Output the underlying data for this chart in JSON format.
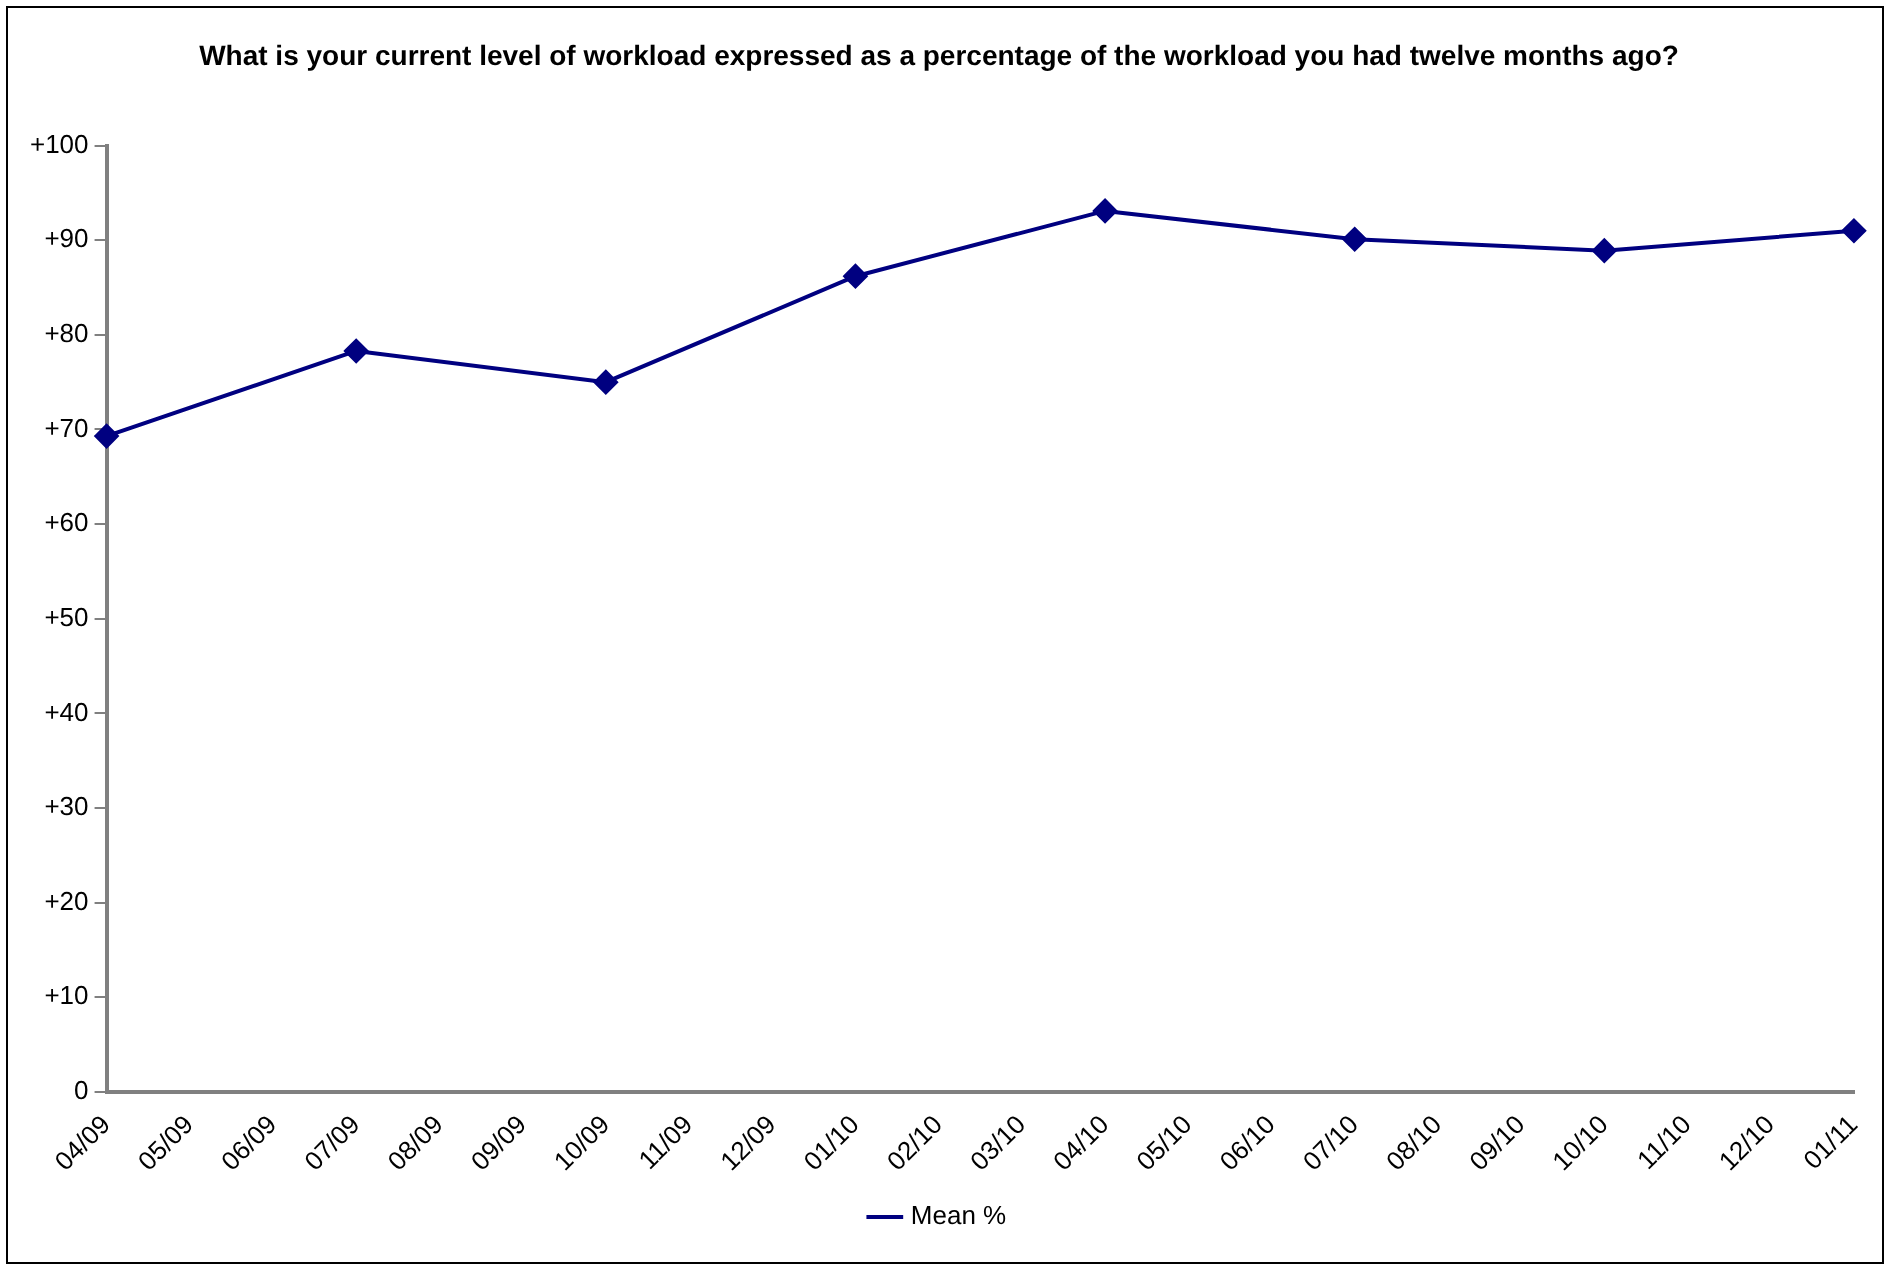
{
  "chart_data": {
    "type": "line",
    "title": "What is your current level of workload expressed as a percentage of the workload you had twelve months ago?",
    "categories": [
      "04/09",
      "05/09",
      "06/09",
      "07/09",
      "08/09",
      "09/09",
      "10/09",
      "11/09",
      "12/09",
      "01/10",
      "02/10",
      "03/10",
      "04/10",
      "05/10",
      "06/10",
      "07/10",
      "08/10",
      "09/10",
      "10/10",
      "11/10",
      "12/10",
      "01/11"
    ],
    "series": [
      {
        "name": "Mean %",
        "color": "#000080",
        "values": [
          69.3,
          null,
          null,
          78.3,
          null,
          null,
          75,
          null,
          null,
          86.2,
          null,
          null,
          93.1,
          null,
          null,
          90.1,
          null,
          null,
          88.9,
          null,
          null,
          91
        ]
      }
    ],
    "ylim": [
      0,
      100
    ],
    "yticks": [
      0,
      {
        "value": 10,
        "label": "+10"
      },
      {
        "value": 20,
        "label": "+20"
      },
      {
        "value": 30,
        "label": "+30"
      },
      {
        "value": 40,
        "label": "+40"
      },
      {
        "value": 50,
        "label": "+50"
      },
      {
        "value": 60,
        "label": "+60"
      },
      {
        "value": 70,
        "label": "+70"
      },
      {
        "value": 80,
        "label": "+80"
      },
      {
        "value": 90,
        "label": "+90"
      },
      {
        "value": 100,
        "label": "+100"
      }
    ],
    "grid": false,
    "legend": "bottom",
    "marker": "diamond",
    "line_style": "solid"
  }
}
